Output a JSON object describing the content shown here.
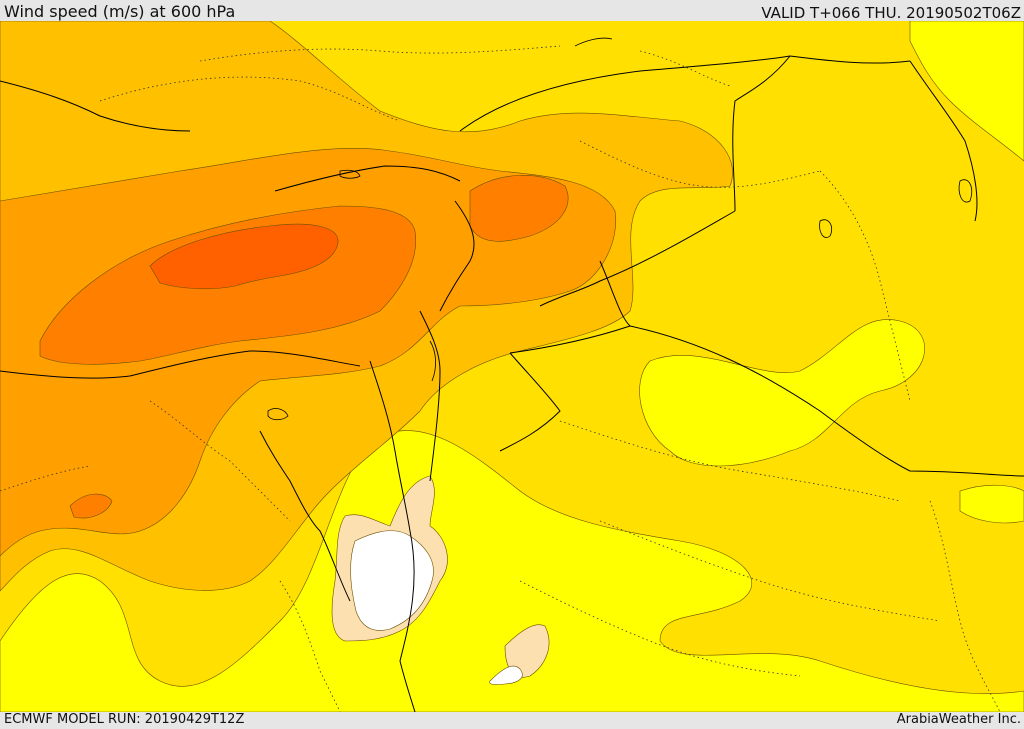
{
  "header": {
    "title": "Wind speed (m/s) at 600 hPa",
    "valid_time": "VALID T+066 THU. 20190502T06Z"
  },
  "footer": {
    "model_run": "ECMWF MODEL RUN: 20190429T12Z",
    "credit": "ArabiaWeather Inc."
  },
  "colors": {
    "level_1": "#ffffff",
    "level_2": "#fde0b0",
    "level_3": "#ffff00",
    "level_4": "#ffe000",
    "level_5": "#ffc000",
    "level_6": "#ffa000",
    "level_7": "#ff8000",
    "level_8": "#ff6000"
  }
}
